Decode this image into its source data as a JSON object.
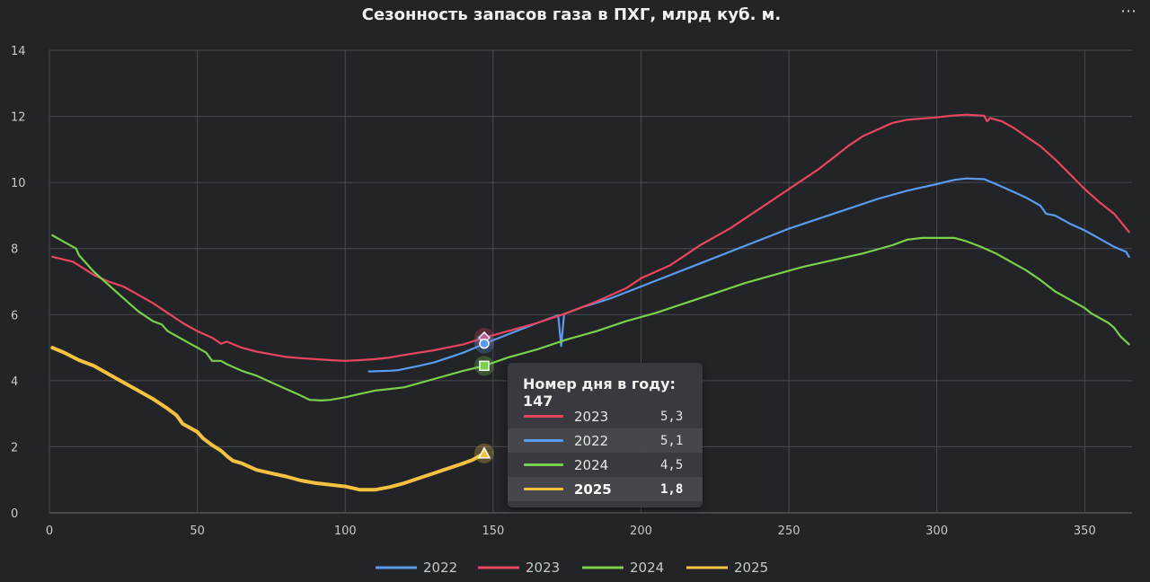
{
  "colors": {
    "2022": "#5b9bef",
    "2023": "#e8455f",
    "2024": "#79d04a",
    "2025": "#f5c140"
  },
  "menu_icon": "more-dots-icon",
  "chart_data": {
    "type": "line",
    "title": "Сезонность запасов газа в ПХГ, млрд куб. м.",
    "xlabel": "",
    "ylabel": "",
    "xlim": [
      0,
      366
    ],
    "ylim": [
      0,
      14
    ],
    "x_ticks": [
      0,
      50,
      100,
      150,
      200,
      250,
      300,
      350
    ],
    "y_ticks": [
      0,
      2,
      4,
      6,
      8,
      10,
      12,
      14
    ],
    "grid": true,
    "legend_position": "bottom",
    "series": [
      {
        "name": "2022",
        "points": [
          [
            108,
            4.28
          ],
          [
            115,
            4.3
          ],
          [
            118,
            4.32
          ],
          [
            125,
            4.45
          ],
          [
            130,
            4.55
          ],
          [
            140,
            4.85
          ],
          [
            147,
            5.12
          ],
          [
            155,
            5.4
          ],
          [
            165,
            5.75
          ],
          [
            172,
            5.98
          ],
          [
            173,
            5.05
          ],
          [
            174,
            6.02
          ],
          [
            180,
            6.22
          ],
          [
            190,
            6.5
          ],
          [
            200,
            6.85
          ],
          [
            210,
            7.2
          ],
          [
            220,
            7.55
          ],
          [
            230,
            7.9
          ],
          [
            240,
            8.25
          ],
          [
            250,
            8.6
          ],
          [
            260,
            8.9
          ],
          [
            270,
            9.2
          ],
          [
            280,
            9.5
          ],
          [
            290,
            9.75
          ],
          [
            300,
            9.95
          ],
          [
            306,
            10.08
          ],
          [
            310,
            10.12
          ],
          [
            316,
            10.1
          ],
          [
            320,
            9.95
          ],
          [
            325,
            9.75
          ],
          [
            330,
            9.55
          ],
          [
            335,
            9.3
          ],
          [
            337,
            9.05
          ],
          [
            340,
            9.0
          ],
          [
            345,
            8.75
          ],
          [
            350,
            8.55
          ],
          [
            355,
            8.3
          ],
          [
            360,
            8.05
          ],
          [
            364,
            7.9
          ],
          [
            365,
            7.75
          ]
        ]
      },
      {
        "name": "2023",
        "points": [
          [
            1,
            7.75
          ],
          [
            8,
            7.6
          ],
          [
            15,
            7.2
          ],
          [
            20,
            7.0
          ],
          [
            25,
            6.85
          ],
          [
            30,
            6.6
          ],
          [
            35,
            6.35
          ],
          [
            40,
            6.05
          ],
          [
            45,
            5.75
          ],
          [
            50,
            5.5
          ],
          [
            55,
            5.3
          ],
          [
            58,
            5.12
          ],
          [
            60,
            5.18
          ],
          [
            65,
            5.0
          ],
          [
            70,
            4.88
          ],
          [
            75,
            4.8
          ],
          [
            80,
            4.72
          ],
          [
            85,
            4.68
          ],
          [
            90,
            4.65
          ],
          [
            95,
            4.62
          ],
          [
            100,
            4.6
          ],
          [
            105,
            4.62
          ],
          [
            110,
            4.65
          ],
          [
            115,
            4.7
          ],
          [
            120,
            4.78
          ],
          [
            130,
            4.92
          ],
          [
            140,
            5.1
          ],
          [
            147,
            5.3
          ],
          [
            155,
            5.5
          ],
          [
            165,
            5.75
          ],
          [
            175,
            6.05
          ],
          [
            185,
            6.4
          ],
          [
            195,
            6.8
          ],
          [
            200,
            7.1
          ],
          [
            205,
            7.3
          ],
          [
            210,
            7.5
          ],
          [
            220,
            8.1
          ],
          [
            230,
            8.6
          ],
          [
            240,
            9.2
          ],
          [
            250,
            9.8
          ],
          [
            260,
            10.4
          ],
          [
            265,
            10.75
          ],
          [
            270,
            11.1
          ],
          [
            275,
            11.4
          ],
          [
            280,
            11.6
          ],
          [
            285,
            11.8
          ],
          [
            290,
            11.9
          ],
          [
            300,
            11.97
          ],
          [
            305,
            12.02
          ],
          [
            310,
            12.05
          ],
          [
            316,
            12.02
          ],
          [
            317,
            11.85
          ],
          [
            318,
            11.95
          ],
          [
            322,
            11.85
          ],
          [
            326,
            11.65
          ],
          [
            330,
            11.4
          ],
          [
            335,
            11.1
          ],
          [
            340,
            10.7
          ],
          [
            345,
            10.25
          ],
          [
            350,
            9.8
          ],
          [
            355,
            9.4
          ],
          [
            360,
            9.05
          ],
          [
            365,
            8.5
          ]
        ]
      },
      {
        "name": "2024",
        "points": [
          [
            1,
            8.4
          ],
          [
            5,
            8.2
          ],
          [
            9,
            8.0
          ],
          [
            10,
            7.8
          ],
          [
            15,
            7.3
          ],
          [
            20,
            6.9
          ],
          [
            25,
            6.5
          ],
          [
            30,
            6.1
          ],
          [
            35,
            5.8
          ],
          [
            38,
            5.7
          ],
          [
            40,
            5.5
          ],
          [
            45,
            5.25
          ],
          [
            50,
            5.0
          ],
          [
            53,
            4.85
          ],
          [
            55,
            4.6
          ],
          [
            58,
            4.6
          ],
          [
            60,
            4.5
          ],
          [
            65,
            4.3
          ],
          [
            70,
            4.15
          ],
          [
            75,
            3.95
          ],
          [
            80,
            3.75
          ],
          [
            85,
            3.55
          ],
          [
            88,
            3.42
          ],
          [
            92,
            3.4
          ],
          [
            95,
            3.42
          ],
          [
            100,
            3.5
          ],
          [
            105,
            3.6
          ],
          [
            110,
            3.7
          ],
          [
            115,
            3.75
          ],
          [
            120,
            3.8
          ],
          [
            130,
            4.05
          ],
          [
            140,
            4.3
          ],
          [
            147,
            4.45
          ],
          [
            155,
            4.7
          ],
          [
            165,
            4.95
          ],
          [
            175,
            5.25
          ],
          [
            185,
            5.5
          ],
          [
            195,
            5.8
          ],
          [
            205,
            6.05
          ],
          [
            215,
            6.35
          ],
          [
            225,
            6.65
          ],
          [
            235,
            6.95
          ],
          [
            245,
            7.2
          ],
          [
            255,
            7.45
          ],
          [
            265,
            7.65
          ],
          [
            275,
            7.85
          ],
          [
            285,
            8.1
          ],
          [
            290,
            8.27
          ],
          [
            295,
            8.32
          ],
          [
            300,
            8.32
          ],
          [
            306,
            8.32
          ],
          [
            310,
            8.22
          ],
          [
            315,
            8.05
          ],
          [
            320,
            7.85
          ],
          [
            325,
            7.6
          ],
          [
            330,
            7.35
          ],
          [
            335,
            7.05
          ],
          [
            340,
            6.7
          ],
          [
            345,
            6.45
          ],
          [
            350,
            6.2
          ],
          [
            352,
            6.05
          ],
          [
            355,
            5.9
          ],
          [
            358,
            5.75
          ],
          [
            360,
            5.6
          ],
          [
            362,
            5.35
          ],
          [
            365,
            5.1
          ]
        ]
      },
      {
        "name": "2025",
        "points": [
          [
            1,
            5.0
          ],
          [
            5,
            4.85
          ],
          [
            10,
            4.62
          ],
          [
            15,
            4.45
          ],
          [
            20,
            4.2
          ],
          [
            25,
            3.95
          ],
          [
            30,
            3.7
          ],
          [
            35,
            3.45
          ],
          [
            40,
            3.15
          ],
          [
            43,
            2.95
          ],
          [
            45,
            2.7
          ],
          [
            50,
            2.45
          ],
          [
            52,
            2.25
          ],
          [
            55,
            2.05
          ],
          [
            58,
            1.88
          ],
          [
            60,
            1.72
          ],
          [
            62,
            1.58
          ],
          [
            65,
            1.5
          ],
          [
            70,
            1.3
          ],
          [
            75,
            1.2
          ],
          [
            80,
            1.1
          ],
          [
            85,
            0.98
          ],
          [
            90,
            0.9
          ],
          [
            95,
            0.85
          ],
          [
            100,
            0.8
          ],
          [
            105,
            0.7
          ],
          [
            110,
            0.7
          ],
          [
            115,
            0.78
          ],
          [
            120,
            0.9
          ],
          [
            125,
            1.05
          ],
          [
            130,
            1.2
          ],
          [
            135,
            1.35
          ],
          [
            140,
            1.5
          ],
          [
            143,
            1.6
          ],
          [
            147,
            1.8
          ]
        ]
      }
    ],
    "tooltip": {
      "title": "Номер дня в году: 147",
      "x": 147,
      "rows": [
        {
          "name": "2023",
          "value": "5,3",
          "y": 5.3,
          "marker": "diamond",
          "highlighted": false,
          "bold": false
        },
        {
          "name": "2022",
          "value": "5,1",
          "y": 5.12,
          "marker": "circle",
          "highlighted": true,
          "bold": false
        },
        {
          "name": "2024",
          "value": "4,5",
          "y": 4.45,
          "marker": "square",
          "highlighted": false,
          "bold": false
        },
        {
          "name": "2025",
          "value": "1,8",
          "y": 1.8,
          "marker": "triangle",
          "highlighted": true,
          "bold": true
        }
      ]
    }
  }
}
